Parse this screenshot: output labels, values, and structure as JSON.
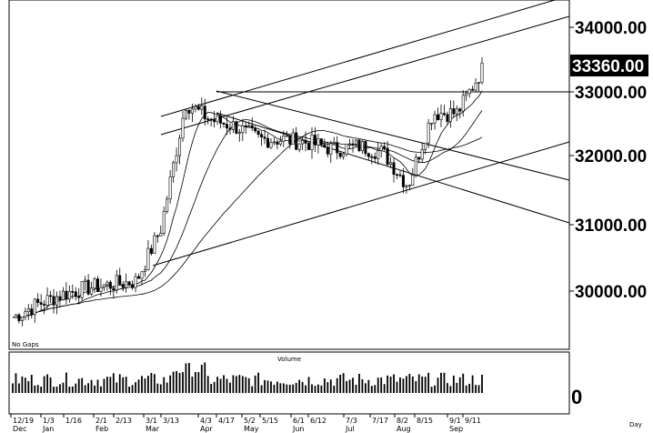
{
  "price_panel": {
    "note": "No Gaps",
    "y_ticks": [
      "34000.00",
      "33000.00",
      "32000.00",
      "31000.00",
      "30000.00"
    ],
    "last_price": "33360.00"
  },
  "volume_panel": {
    "title": "Volume",
    "y_tick": "0"
  },
  "x_axis": {
    "day_labels": [
      "12/19",
      "1/3",
      "1/16",
      "2/1",
      "2/13",
      "3/1",
      "3/13",
      "4/3",
      "4/17",
      "5/2",
      "5/15",
      "6/1",
      "6/12",
      "7/3",
      "7/17",
      "8/2",
      "8/15",
      "9/1",
      "9/11"
    ],
    "month_labels": [
      "Dec",
      "Jan",
      "Feb",
      "Mar",
      "Apr",
      "May",
      "Jun",
      "Jul",
      "Aug",
      "Sep"
    ],
    "unit": "Day"
  },
  "colors": {
    "ink": "#000000",
    "background": "#ffffff"
  },
  "chart_data": {
    "type": "candlestick",
    "x": [
      "12/19",
      "1/3",
      "1/16",
      "2/1",
      "2/13",
      "3/1",
      "3/13",
      "4/3",
      "4/17",
      "5/2",
      "5/15",
      "6/1",
      "6/12",
      "7/3",
      "7/17",
      "8/2",
      "8/15",
      "9/1",
      "9/11",
      "9/15"
    ],
    "close": [
      29600,
      29800,
      29950,
      30050,
      30100,
      30150,
      30950,
      32850,
      32600,
      32500,
      32300,
      32300,
      32250,
      32150,
      32200,
      32100,
      31600,
      32700,
      32700,
      33360
    ],
    "ylim": [
      29300,
      34500
    ],
    "last_value": 33360,
    "volume": {
      "title": "Volume",
      "ylim": [
        0,
        100
      ]
    },
    "grid": false,
    "legend": "none"
  }
}
